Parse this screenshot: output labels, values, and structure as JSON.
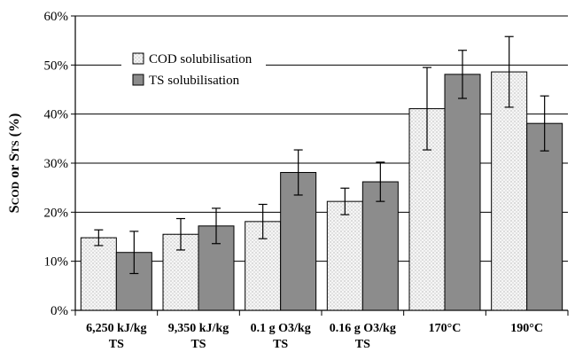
{
  "chart_data": {
    "type": "bar",
    "title": "",
    "xlabel": "",
    "ylabel": {
      "part1_big": "S",
      "part1_small": "COD",
      "part2": " or S",
      "part2_small": "TS",
      "part3": " (%)"
    },
    "ylim": [
      0,
      60
    ],
    "yticks": [
      0,
      10,
      20,
      30,
      40,
      50,
      60
    ],
    "ytick_labels": [
      "0%",
      "10%",
      "20%",
      "30%",
      "40%",
      "50%",
      "60%"
    ],
    "grid": true,
    "legend_position": "top-left",
    "categories": [
      {
        "line1": "6,250 kJ/kg",
        "line2": "TS"
      },
      {
        "line1": "9,350 kJ/kg",
        "line2": "TS"
      },
      {
        "line1": "0.1 g O3/kg",
        "line2": "TS"
      },
      {
        "line1": "0.16 g O3/kg",
        "line2": "TS"
      },
      {
        "line1": "170°C",
        "line2": ""
      },
      {
        "line1": "190°C",
        "line2": ""
      }
    ],
    "series": [
      {
        "name": "COD solubilisation",
        "color": "#f2f2f2",
        "pattern": "dots",
        "values": [
          14.8,
          15.5,
          18.1,
          22.2,
          41.1,
          48.6
        ],
        "errors": [
          1.6,
          3.2,
          3.5,
          2.7,
          8.4,
          7.2
        ]
      },
      {
        "name": "TS solubilisation",
        "color": "#8c8c8c",
        "pattern": "solid",
        "values": [
          11.8,
          17.2,
          28.1,
          26.2,
          48.1,
          38.1
        ],
        "errors": [
          4.3,
          3.6,
          4.6,
          4.0,
          4.9,
          5.6
        ]
      }
    ]
  }
}
